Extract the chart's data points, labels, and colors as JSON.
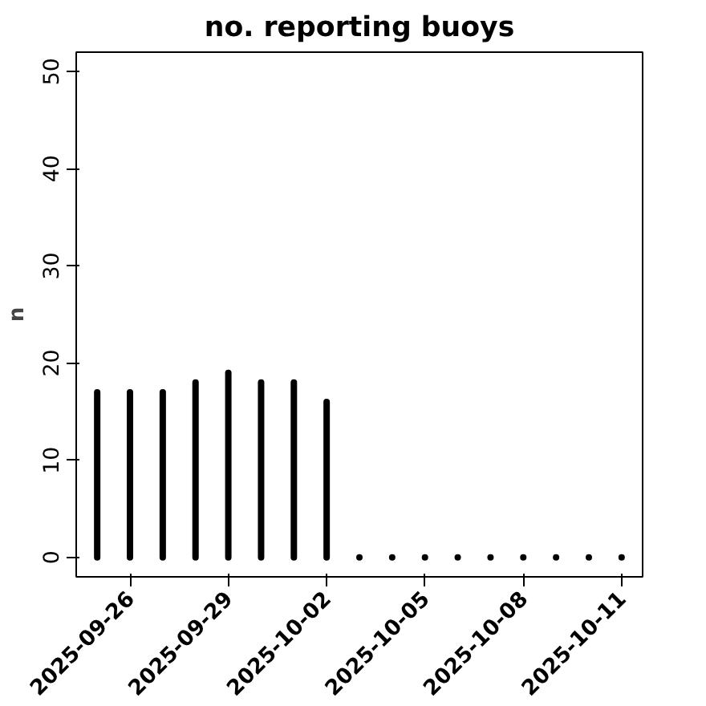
{
  "chart_data": {
    "type": "bar",
    "title": "no. reporting buoys",
    "ylabel": "n",
    "x": [
      "2025-09-25",
      "2025-09-26",
      "2025-09-27",
      "2025-09-28",
      "2025-09-29",
      "2025-09-30",
      "2025-10-01",
      "2025-10-02",
      "2025-10-03",
      "2025-10-04",
      "2025-10-05",
      "2025-10-06",
      "2025-10-07",
      "2025-10-08",
      "2025-10-09",
      "2025-10-10",
      "2025-10-11"
    ],
    "values": [
      17,
      17,
      17,
      18,
      19,
      18,
      18,
      16,
      0,
      0,
      0,
      0,
      0,
      0,
      0,
      0,
      0
    ],
    "color": "#000000",
    "xlim": [
      "2025-09-24T08:38",
      "2025-10-11T15:22"
    ],
    "xticks": [
      {
        "value": "2025-09-26",
        "label": "2025-09-26"
      },
      {
        "value": "2025-09-29",
        "label": "2025-09-29"
      },
      {
        "value": "2025-10-02",
        "label": "2025-10-02"
      },
      {
        "value": "2025-10-05",
        "label": "2025-10-05"
      },
      {
        "value": "2025-10-08",
        "label": "2025-10-08"
      },
      {
        "value": "2025-10-11",
        "label": "2025-10-11"
      }
    ],
    "ylim": [
      -2,
      52
    ],
    "yticks": [
      0,
      10,
      20,
      30,
      40,
      50
    ],
    "grid": false
  }
}
